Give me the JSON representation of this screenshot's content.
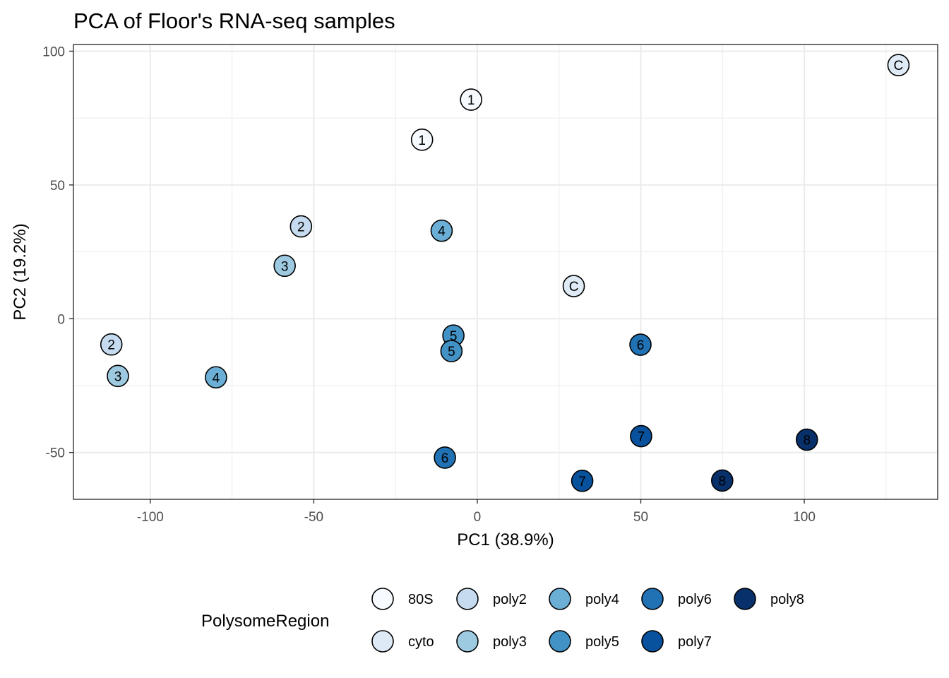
{
  "chart_data": {
    "type": "scatter",
    "title": "PCA of Floor's RNA-seq samples",
    "xlabel": "PC1 (38.9%)",
    "ylabel": "PC2 (19.2%)",
    "xlim": [
      -123.5,
      140.8
    ],
    "ylim": [
      -67.5,
      102.5
    ],
    "xticks": [
      -100,
      -50,
      0,
      50,
      100
    ],
    "xtick_labels": [
      "-100",
      "-50",
      "0",
      "50",
      "100"
    ],
    "yticks": [
      -50,
      0,
      50,
      100
    ],
    "ytick_labels": [
      "-50",
      "0",
      "50",
      "100"
    ],
    "grid": true,
    "legend": {
      "title": "PolysomeRegion",
      "position": "bottom",
      "entries": [
        {
          "label": "80S",
          "color": "#f7fbff"
        },
        {
          "label": "cyto",
          "color": "#deebf7"
        },
        {
          "label": "poly2",
          "color": "#c6dbef"
        },
        {
          "label": "poly3",
          "color": "#9ecae1"
        },
        {
          "label": "poly4",
          "color": "#6baed6"
        },
        {
          "label": "poly5",
          "color": "#4292c6"
        },
        {
          "label": "poly6",
          "color": "#2171b5"
        },
        {
          "label": "poly7",
          "color": "#08519c"
        },
        {
          "label": "poly8",
          "color": "#08306b"
        }
      ]
    },
    "points": [
      {
        "x": -1.9,
        "y": 81.9,
        "label": "1",
        "group": "80S"
      },
      {
        "x": -16.9,
        "y": 66.9,
        "label": "1",
        "group": "80S"
      },
      {
        "x": 128.8,
        "y": 94.8,
        "label": "C",
        "group": "cyto"
      },
      {
        "x": 29.5,
        "y": 12.2,
        "label": "C",
        "group": "cyto"
      },
      {
        "x": -53.9,
        "y": 34.5,
        "label": "2",
        "group": "poly2"
      },
      {
        "x": -111.9,
        "y": -9.6,
        "label": "2",
        "group": "poly2"
      },
      {
        "x": -58.9,
        "y": 19.8,
        "label": "3",
        "group": "poly3"
      },
      {
        "x": -109.9,
        "y": -21.4,
        "label": "3",
        "group": "poly3"
      },
      {
        "x": -10.9,
        "y": 32.9,
        "label": "4",
        "group": "poly4"
      },
      {
        "x": -79.9,
        "y": -21.9,
        "label": "4",
        "group": "poly4"
      },
      {
        "x": -7.3,
        "y": -6.3,
        "label": "5",
        "group": "poly5"
      },
      {
        "x": -7.9,
        "y": -12.1,
        "label": "5",
        "group": "poly5"
      },
      {
        "x": 49.9,
        "y": -9.7,
        "label": "6",
        "group": "poly6"
      },
      {
        "x": -9.9,
        "y": -51.9,
        "label": "6",
        "group": "poly6"
      },
      {
        "x": 50.1,
        "y": -43.9,
        "label": "7",
        "group": "poly7"
      },
      {
        "x": 32.1,
        "y": -60.6,
        "label": "7",
        "group": "poly7"
      },
      {
        "x": 100.8,
        "y": -45.2,
        "label": "8",
        "group": "poly8"
      },
      {
        "x": 74.9,
        "y": -60.5,
        "label": "8",
        "group": "poly8"
      }
    ]
  }
}
